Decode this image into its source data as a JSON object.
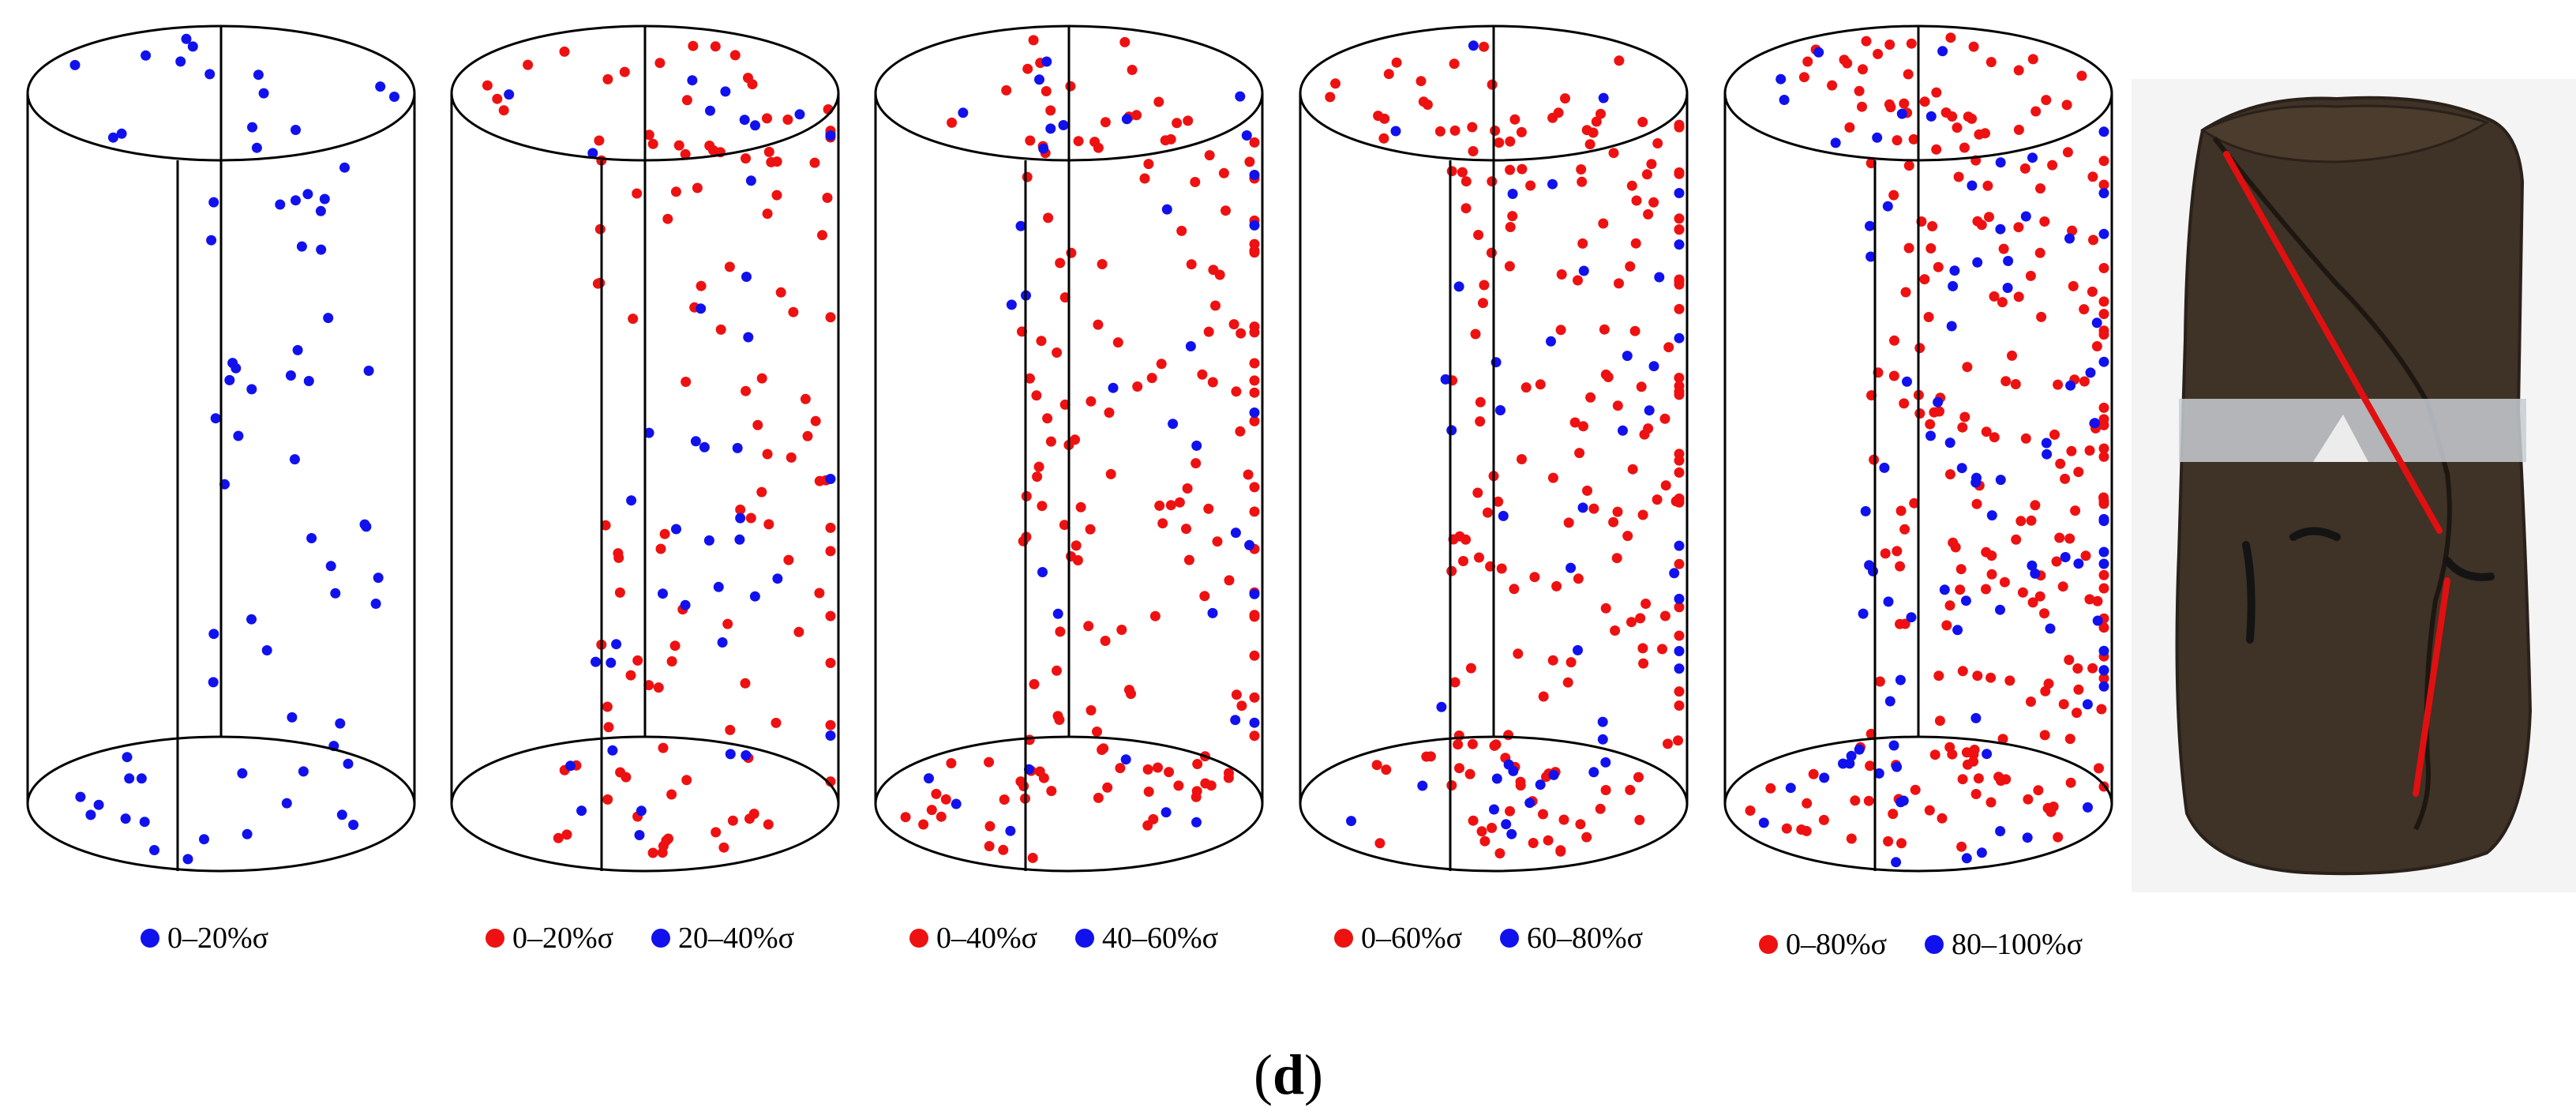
{
  "figure_label": {
    "open": "(",
    "letter": "d",
    "close": ")"
  },
  "colors": {
    "red": "#ee1111",
    "blue": "#1111ee",
    "outline": "#000000",
    "rock_dark": "#3f3226",
    "rock_mid": "#4b3c2e",
    "tape": "#c8ccd2",
    "fracture_line": "#e01010"
  },
  "panels": [
    {
      "id": "panel-1",
      "legend": [
        {
          "color": "blue",
          "label": "0–20%σ"
        }
      ],
      "points_seed": 11,
      "red_count": 0,
      "blue_count": 70
    },
    {
      "id": "panel-2",
      "legend": [
        {
          "color": "red",
          "label": "0–20%σ"
        },
        {
          "color": "blue",
          "label": "20–40%σ"
        }
      ],
      "points_seed": 23,
      "red_count": 120,
      "blue_count": 40
    },
    {
      "id": "panel-3",
      "legend": [
        {
          "color": "red",
          "label": "0–40%σ"
        },
        {
          "color": "blue",
          "label": "40–60%σ"
        }
      ],
      "points_seed": 37,
      "red_count": 170,
      "blue_count": 35
    },
    {
      "id": "panel-4",
      "legend": [
        {
          "color": "red",
          "label": "0–60%σ"
        },
        {
          "color": "blue",
          "label": "60–80%σ"
        }
      ],
      "points_seed": 53,
      "red_count": 200,
      "blue_count": 45
    },
    {
      "id": "panel-5",
      "legend": [
        {
          "color": "red",
          "label": "0–80%σ"
        },
        {
          "color": "blue",
          "label": "80–100%σ"
        }
      ],
      "points_seed": 71,
      "red_count": 240,
      "blue_count": 90
    }
  ],
  "photo": {
    "subject": "fractured rock core sample"
  }
}
